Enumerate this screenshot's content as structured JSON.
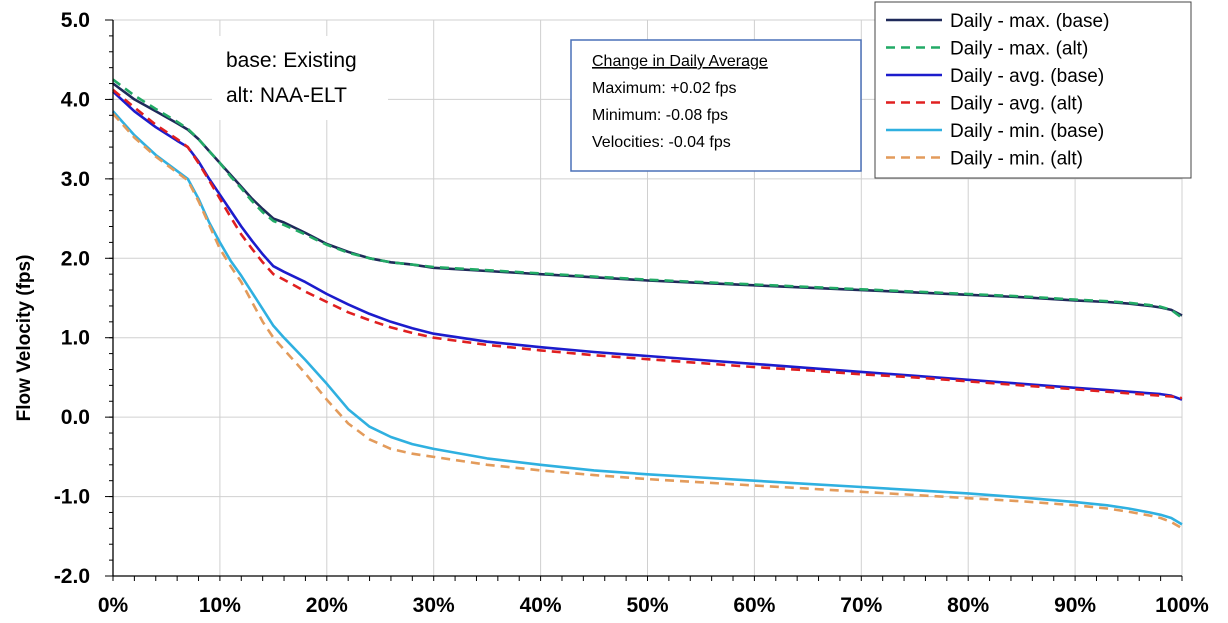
{
  "chart_data": {
    "type": "line",
    "title": "",
    "xlabel": "",
    "ylabel": "Flow Velocity (fps)",
    "xlim": [
      0,
      100
    ],
    "ylim": [
      -2.0,
      5.0
    ],
    "x_ticks": [
      "0%",
      "10%",
      "20%",
      "30%",
      "40%",
      "50%",
      "60%",
      "70%",
      "80%",
      "90%",
      "100%"
    ],
    "y_ticks": [
      "5.0",
      "4.0",
      "3.0",
      "2.0",
      "1.0",
      "0.0",
      "-1.0",
      "-2.0"
    ],
    "grid": true,
    "legend_position": "top-right",
    "annotation": [
      "base: Existing",
      "alt: NAA-ELT"
    ],
    "note_box": {
      "title": "Change in Daily Average",
      "lines": [
        "Maximum: +0.02 fps",
        "Minimum: -0.08 fps",
        "Velocities: -0.04 fps"
      ]
    },
    "x": [
      0,
      2,
      4,
      6,
      7,
      8,
      9,
      10,
      11,
      12,
      13,
      14,
      15,
      16,
      18,
      20,
      22,
      24,
      26,
      28,
      30,
      35,
      40,
      45,
      50,
      55,
      60,
      65,
      70,
      75,
      80,
      85,
      90,
      93,
      95,
      97,
      98,
      99,
      100
    ],
    "series": [
      {
        "name": "Daily - max. (base)",
        "color": "#1f2a5a",
        "dash": "solid",
        "values": [
          4.2,
          4.0,
          3.85,
          3.7,
          3.62,
          3.5,
          3.35,
          3.2,
          3.05,
          2.9,
          2.75,
          2.62,
          2.5,
          2.45,
          2.32,
          2.18,
          2.08,
          2.0,
          1.95,
          1.92,
          1.88,
          1.84,
          1.8,
          1.76,
          1.72,
          1.69,
          1.66,
          1.63,
          1.6,
          1.57,
          1.54,
          1.51,
          1.47,
          1.45,
          1.43,
          1.4,
          1.38,
          1.35,
          1.28
        ]
      },
      {
        "name": "Daily - max. (alt)",
        "color": "#22aa66",
        "dash": "dashed",
        "values": [
          4.25,
          4.05,
          3.88,
          3.72,
          3.63,
          3.5,
          3.35,
          3.2,
          3.03,
          2.88,
          2.72,
          2.58,
          2.47,
          2.42,
          2.3,
          2.17,
          2.07,
          2.0,
          1.95,
          1.92,
          1.89,
          1.85,
          1.81,
          1.77,
          1.73,
          1.7,
          1.67,
          1.64,
          1.61,
          1.58,
          1.55,
          1.52,
          1.48,
          1.46,
          1.44,
          1.41,
          1.39,
          1.35,
          1.25
        ]
      },
      {
        "name": "Daily - avg. (base)",
        "color": "#1c1ccc",
        "dash": "solid",
        "values": [
          4.1,
          3.85,
          3.65,
          3.48,
          3.4,
          3.22,
          3.0,
          2.8,
          2.6,
          2.4,
          2.22,
          2.05,
          1.9,
          1.83,
          1.7,
          1.55,
          1.42,
          1.3,
          1.2,
          1.12,
          1.05,
          0.95,
          0.88,
          0.82,
          0.77,
          0.72,
          0.67,
          0.62,
          0.57,
          0.52,
          0.47,
          0.42,
          0.37,
          0.34,
          0.32,
          0.3,
          0.29,
          0.27,
          0.22
        ]
      },
      {
        "name": "Daily - avg. (alt)",
        "color": "#e02020",
        "dash": "dashed",
        "values": [
          4.12,
          3.9,
          3.68,
          3.5,
          3.4,
          3.2,
          2.98,
          2.75,
          2.52,
          2.3,
          2.12,
          1.95,
          1.8,
          1.73,
          1.58,
          1.45,
          1.32,
          1.22,
          1.13,
          1.06,
          1.0,
          0.91,
          0.84,
          0.78,
          0.73,
          0.68,
          0.63,
          0.59,
          0.54,
          0.5,
          0.45,
          0.4,
          0.35,
          0.32,
          0.3,
          0.28,
          0.27,
          0.26,
          0.24
        ]
      },
      {
        "name": "Daily - min. (base)",
        "color": "#2fb0e0",
        "dash": "solid",
        "values": [
          3.85,
          3.55,
          3.3,
          3.1,
          3.0,
          2.75,
          2.45,
          2.2,
          1.97,
          1.78,
          1.57,
          1.36,
          1.15,
          1.0,
          0.72,
          0.42,
          0.1,
          -0.12,
          -0.25,
          -0.34,
          -0.4,
          -0.52,
          -0.6,
          -0.67,
          -0.72,
          -0.76,
          -0.8,
          -0.84,
          -0.88,
          -0.92,
          -0.96,
          -1.01,
          -1.07,
          -1.11,
          -1.15,
          -1.2,
          -1.23,
          -1.27,
          -1.35
        ]
      },
      {
        "name": "Daily - min. (alt)",
        "color": "#e39b5b",
        "dash": "dashed",
        "values": [
          3.82,
          3.52,
          3.28,
          3.08,
          2.98,
          2.72,
          2.42,
          2.12,
          1.9,
          1.7,
          1.45,
          1.2,
          1.0,
          0.85,
          0.55,
          0.22,
          -0.08,
          -0.28,
          -0.4,
          -0.46,
          -0.5,
          -0.6,
          -0.67,
          -0.73,
          -0.78,
          -0.82,
          -0.86,
          -0.9,
          -0.94,
          -0.98,
          -1.02,
          -1.06,
          -1.11,
          -1.15,
          -1.19,
          -1.24,
          -1.27,
          -1.32,
          -1.4
        ]
      }
    ]
  }
}
